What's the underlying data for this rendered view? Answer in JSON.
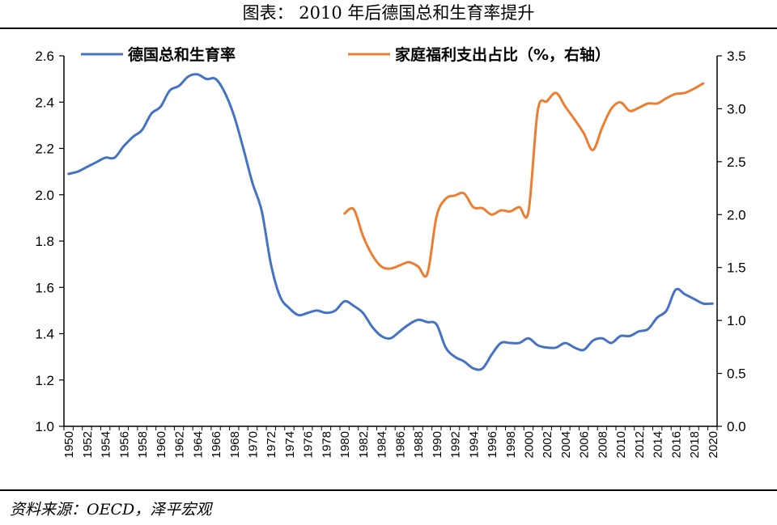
{
  "header": {
    "title": "图表： 2010 年后德国总和生育率提升"
  },
  "footer": {
    "source": "资料来源：OECD，泽平宏观"
  },
  "chart_data": {
    "type": "line",
    "title": "图表： 2010 年后德国总和生育率提升",
    "x": [
      1950,
      1951,
      1952,
      1953,
      1954,
      1955,
      1956,
      1957,
      1958,
      1959,
      1960,
      1961,
      1962,
      1963,
      1964,
      1965,
      1966,
      1967,
      1968,
      1969,
      1970,
      1971,
      1972,
      1973,
      1974,
      1975,
      1976,
      1977,
      1978,
      1979,
      1980,
      1981,
      1982,
      1983,
      1984,
      1985,
      1986,
      1987,
      1988,
      1989,
      1990,
      1991,
      1992,
      1993,
      1994,
      1995,
      1996,
      1997,
      1998,
      1999,
      2000,
      2001,
      2002,
      2003,
      2004,
      2005,
      2006,
      2007,
      2008,
      2009,
      2010,
      2011,
      2012,
      2013,
      2014,
      2015,
      2016,
      2017,
      2018,
      2019,
      2020
    ],
    "x_tick_labels": [
      "1950",
      "1952",
      "1954",
      "1956",
      "1958",
      "1960",
      "1962",
      "1964",
      "1966",
      "1968",
      "1970",
      "1972",
      "1974",
      "1976",
      "1978",
      "1980",
      "1982",
      "1984",
      "1986",
      "1988",
      "1990",
      "1992",
      "1994",
      "1996",
      "1998",
      "2000",
      "2002",
      "2004",
      "2006",
      "2008",
      "2010",
      "2012",
      "2014",
      "2016",
      "2018",
      "2020"
    ],
    "y_left": {
      "lim": [
        1.0,
        2.6
      ],
      "ticks": [
        "1.0",
        "1.2",
        "1.4",
        "1.6",
        "1.8",
        "2.0",
        "2.2",
        "2.4",
        "2.6"
      ]
    },
    "y_right": {
      "lim": [
        0.0,
        3.5
      ],
      "ticks": [
        "0.0",
        "0.5",
        "1.0",
        "1.5",
        "2.0",
        "2.5",
        "3.0",
        "3.5"
      ]
    },
    "legend_position": "top",
    "grid": false,
    "series": [
      {
        "name": "德国总和生育率",
        "axis": "left",
        "color": "#4472C4",
        "x": [
          1950,
          1951,
          1952,
          1953,
          1954,
          1955,
          1956,
          1957,
          1958,
          1959,
          1960,
          1961,
          1962,
          1963,
          1964,
          1965,
          1966,
          1967,
          1968,
          1969,
          1970,
          1971,
          1972,
          1973,
          1974,
          1975,
          1976,
          1977,
          1978,
          1979,
          1980,
          1981,
          1982,
          1983,
          1984,
          1985,
          1986,
          1987,
          1988,
          1989,
          1990,
          1991,
          1992,
          1993,
          1994,
          1995,
          1996,
          1997,
          1998,
          1999,
          2000,
          2001,
          2002,
          2003,
          2004,
          2005,
          2006,
          2007,
          2008,
          2009,
          2010,
          2011,
          2012,
          2013,
          2014,
          2015,
          2016,
          2017,
          2018,
          2019,
          2020
        ],
        "values": [
          2.09,
          2.1,
          2.12,
          2.14,
          2.16,
          2.16,
          2.21,
          2.25,
          2.28,
          2.35,
          2.38,
          2.45,
          2.47,
          2.51,
          2.52,
          2.5,
          2.5,
          2.44,
          2.34,
          2.2,
          2.05,
          1.93,
          1.7,
          1.56,
          1.51,
          1.48,
          1.49,
          1.5,
          1.49,
          1.5,
          1.54,
          1.52,
          1.49,
          1.43,
          1.39,
          1.38,
          1.41,
          1.44,
          1.46,
          1.45,
          1.44,
          1.34,
          1.3,
          1.28,
          1.25,
          1.25,
          1.31,
          1.36,
          1.36,
          1.36,
          1.38,
          1.35,
          1.34,
          1.34,
          1.36,
          1.34,
          1.33,
          1.37,
          1.38,
          1.36,
          1.39,
          1.39,
          1.41,
          1.42,
          1.47,
          1.5,
          1.59,
          1.57,
          1.55,
          1.53,
          1.53
        ]
      },
      {
        "name": "家庭福利支出占比（%，右轴）",
        "axis": "right",
        "color": "#ED7D31",
        "x": [
          1980,
          1981,
          1982,
          1983,
          1984,
          1985,
          1986,
          1987,
          1988,
          1989,
          1990,
          1991,
          1992,
          1993,
          1994,
          1995,
          1996,
          1997,
          1998,
          1999,
          2000,
          2001,
          2002,
          2003,
          2004,
          2005,
          2006,
          2007,
          2008,
          2009,
          2010,
          2011,
          2012,
          2013,
          2014,
          2015,
          2016,
          2017,
          2018,
          2019
        ],
        "values": [
          2.01,
          2.05,
          1.8,
          1.62,
          1.51,
          1.49,
          1.52,
          1.55,
          1.51,
          1.44,
          1.98,
          2.15,
          2.18,
          2.2,
          2.07,
          2.06,
          2.0,
          2.04,
          2.03,
          2.07,
          2.03,
          2.98,
          3.07,
          3.15,
          3.02,
          2.9,
          2.77,
          2.61,
          2.82,
          3.0,
          3.06,
          2.98,
          3.01,
          3.05,
          3.05,
          3.1,
          3.14,
          3.15,
          3.19,
          3.24
        ]
      }
    ]
  }
}
